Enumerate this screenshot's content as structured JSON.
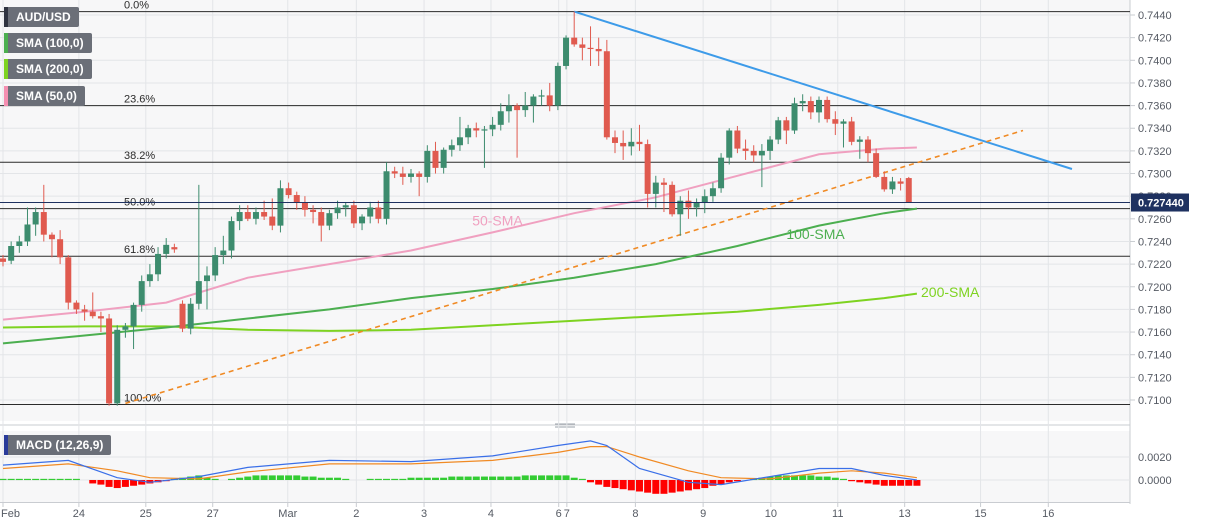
{
  "symbol": "AUD/USD",
  "indicators": [
    {
      "label": "SMA (100,0)",
      "color": "#4caf50"
    },
    {
      "label": "SMA (200,0)",
      "color": "#7ed321"
    },
    {
      "label": "SMA (50,0)",
      "color": "#f48fb1"
    }
  ],
  "macd_label": "MACD (12,26,9)",
  "current_price": "0.727440",
  "colors": {
    "up": "#3d8c6e",
    "down": "#e05a4f",
    "sma50": "#f0a0c0",
    "sma100": "#4caf50",
    "sma200": "#7ed321",
    "resistance": "#3d9be9",
    "support": "#f08a24",
    "macd": "#3a6fe8",
    "signal": "#f08a24",
    "hist_pos": "#33cc33",
    "hist_neg": "#ff0000"
  },
  "chart_data": [
    {
      "type": "candlestick",
      "title": "AUD/USD",
      "ylim": [
        0.7087,
        0.7456
      ],
      "y_ticks": [
        "0.7440",
        "0.7420",
        "0.7400",
        "0.7380",
        "0.7360",
        "0.7340",
        "0.7320",
        "0.7300",
        "0.7280",
        "0.7260",
        "0.7240",
        "0.7220",
        "0.7200",
        "0.7180",
        "0.7160",
        "0.7140",
        "0.7120",
        "0.7100"
      ],
      "x_ticks": [
        {
          "label": "Feb",
          "i": 0
        },
        {
          "label": "24",
          "i": 9.3
        },
        {
          "label": "25",
          "i": 17.5
        },
        {
          "label": "27",
          "i": 25.7
        },
        {
          "label": "Mar",
          "i": 34.9
        },
        {
          "label": "2",
          "i": 43.3
        },
        {
          "label": "3",
          "i": 51.6
        },
        {
          "label": "4",
          "i": 59.8
        },
        {
          "label": "6",
          "i": 68.1
        },
        {
          "label": "7",
          "i": 69.1
        },
        {
          "label": "8",
          "i": 77.5
        },
        {
          "label": "9",
          "i": 85.8
        },
        {
          "label": "10",
          "i": 94.1
        },
        {
          "label": "11",
          "i": 102.3
        },
        {
          "label": "13",
          "i": 110.5
        },
        {
          "label": "15",
          "i": 119.8
        },
        {
          "label": "16",
          "i": 128.1
        }
      ],
      "candles": [
        [
          0.7225,
          0.7228,
          0.7218,
          0.7222
        ],
        [
          0.7223,
          0.724,
          0.722,
          0.7236
        ],
        [
          0.7236,
          0.7245,
          0.723,
          0.724
        ],
        [
          0.724,
          0.727,
          0.7236,
          0.7255
        ],
        [
          0.7255,
          0.727,
          0.7245,
          0.7266
        ],
        [
          0.7266,
          0.729,
          0.724,
          0.7246
        ],
        [
          0.7246,
          0.7248,
          0.7226,
          0.7242
        ],
        [
          0.7242,
          0.725,
          0.722,
          0.7226
        ],
        [
          0.7226,
          0.7228,
          0.718,
          0.7186
        ],
        [
          0.7186,
          0.7188,
          0.7176,
          0.718
        ],
        [
          0.718,
          0.7184,
          0.717,
          0.7178
        ],
        [
          0.7178,
          0.7195,
          0.7172,
          0.7174
        ],
        [
          0.7174,
          0.7178,
          0.716,
          0.7172
        ],
        [
          0.7172,
          0.7176,
          0.7095,
          0.7097
        ],
        [
          0.7097,
          0.7166,
          0.7095,
          0.7162
        ],
        [
          0.7162,
          0.7168,
          0.7155,
          0.7165
        ],
        [
          0.7165,
          0.7186,
          0.7145,
          0.7184
        ],
        [
          0.7184,
          0.721,
          0.7178,
          0.7205
        ],
        [
          0.7205,
          0.722,
          0.72,
          0.7211
        ],
        [
          0.7211,
          0.7235,
          0.7205,
          0.7229
        ],
        [
          0.7229,
          0.7243,
          0.7225,
          0.7237
        ],
        [
          0.7235,
          0.7238,
          0.723,
          0.7233
        ],
        [
          0.7185,
          0.7188,
          0.716,
          0.7163
        ],
        [
          0.7163,
          0.719,
          0.7158,
          0.7185
        ],
        [
          0.7185,
          0.729,
          0.718,
          0.7205
        ],
        [
          0.7205,
          0.7218,
          0.718,
          0.721
        ],
        [
          0.721,
          0.7235,
          0.7205,
          0.7228
        ],
        [
          0.7228,
          0.7245,
          0.722,
          0.7232
        ],
        [
          0.7232,
          0.7262,
          0.7225,
          0.7258
        ],
        [
          0.7258,
          0.7272,
          0.725,
          0.7266
        ],
        [
          0.7266,
          0.7272,
          0.7258,
          0.726
        ],
        [
          0.726,
          0.727,
          0.7255,
          0.7266
        ],
        [
          0.7266,
          0.7276,
          0.7259,
          0.7262
        ],
        [
          0.7262,
          0.7278,
          0.725,
          0.7254
        ],
        [
          0.7254,
          0.7294,
          0.7248,
          0.7287
        ],
        [
          0.7287,
          0.7292,
          0.7278,
          0.7281
        ],
        [
          0.7281,
          0.7284,
          0.7268,
          0.7274
        ],
        [
          0.7274,
          0.728,
          0.7262,
          0.7268
        ],
        [
          0.7268,
          0.7272,
          0.7256,
          0.7266
        ],
        [
          0.7266,
          0.727,
          0.724,
          0.7254
        ],
        [
          0.7254,
          0.7268,
          0.725,
          0.7265
        ],
        [
          0.7265,
          0.7276,
          0.726,
          0.727
        ],
        [
          0.727,
          0.7274,
          0.7262,
          0.7272
        ],
        [
          0.7272,
          0.7276,
          0.7252,
          0.7256
        ],
        [
          0.7256,
          0.7264,
          0.725,
          0.7262
        ],
        [
          0.7262,
          0.7275,
          0.7256,
          0.727
        ],
        [
          0.727,
          0.7276,
          0.7256,
          0.726
        ],
        [
          0.726,
          0.731,
          0.7255,
          0.7302
        ],
        [
          0.7302,
          0.7306,
          0.7296,
          0.73
        ],
        [
          0.73,
          0.7306,
          0.729,
          0.7297
        ],
        [
          0.7297,
          0.7304,
          0.7292,
          0.73
        ],
        [
          0.73,
          0.7302,
          0.728,
          0.7297
        ],
        [
          0.7297,
          0.7325,
          0.7292,
          0.732
        ],
        [
          0.732,
          0.7328,
          0.73,
          0.7305
        ],
        [
          0.7305,
          0.7323,
          0.73,
          0.7321
        ],
        [
          0.7321,
          0.733,
          0.7315,
          0.7325
        ],
        [
          0.7325,
          0.735,
          0.732,
          0.7332
        ],
        [
          0.7332,
          0.7343,
          0.7326,
          0.734
        ],
        [
          0.734,
          0.7345,
          0.7332,
          0.7338
        ],
        [
          0.7338,
          0.7342,
          0.7305,
          0.7339
        ],
        [
          0.7339,
          0.735,
          0.7333,
          0.7343
        ],
        [
          0.7343,
          0.7362,
          0.7338,
          0.7355
        ],
        [
          0.7355,
          0.737,
          0.7345,
          0.736
        ],
        [
          0.736,
          0.7362,
          0.7314,
          0.7356
        ],
        [
          0.7356,
          0.7372,
          0.735,
          0.736
        ],
        [
          0.736,
          0.737,
          0.7345,
          0.7368
        ],
        [
          0.7368,
          0.7374,
          0.736,
          0.7369
        ],
        [
          0.7369,
          0.738,
          0.7355,
          0.736
        ],
        [
          0.736,
          0.7398,
          0.7356,
          0.7395
        ],
        [
          0.7395,
          0.7422,
          0.7392,
          0.742
        ],
        [
          0.742,
          0.7443,
          0.7412,
          0.7414
        ],
        [
          0.7414,
          0.742,
          0.74,
          0.7411
        ],
        [
          0.7411,
          0.743,
          0.7395,
          0.741
        ],
        [
          0.741,
          0.742,
          0.7395,
          0.7408
        ],
        [
          0.7408,
          0.7418,
          0.733,
          0.7332
        ],
        [
          0.7332,
          0.7338,
          0.7318,
          0.7327
        ],
        [
          0.7327,
          0.7338,
          0.7312,
          0.7324
        ],
        [
          0.7324,
          0.734,
          0.7316,
          0.7328
        ],
        [
          0.7328,
          0.7343,
          0.732,
          0.7326
        ],
        [
          0.7326,
          0.733,
          0.727,
          0.7282
        ],
        [
          0.7282,
          0.7298,
          0.727,
          0.7292
        ],
        [
          0.7292,
          0.7296,
          0.7266,
          0.729
        ],
        [
          0.729,
          0.7293,
          0.7262,
          0.7264
        ],
        [
          0.7264,
          0.728,
          0.7245,
          0.7276
        ],
        [
          0.7276,
          0.7285,
          0.726,
          0.727
        ],
        [
          0.727,
          0.7278,
          0.7262,
          0.7274
        ],
        [
          0.7274,
          0.7286,
          0.7265,
          0.728
        ],
        [
          0.728,
          0.7292,
          0.7275,
          0.7287
        ],
        [
          0.7287,
          0.7318,
          0.7283,
          0.7314
        ],
        [
          0.7314,
          0.734,
          0.7308,
          0.7338
        ],
        [
          0.7338,
          0.7342,
          0.7318,
          0.7322
        ],
        [
          0.7322,
          0.733,
          0.7312,
          0.732
        ],
        [
          0.732,
          0.7325,
          0.731,
          0.7316
        ],
        [
          0.7316,
          0.7326,
          0.7288,
          0.732
        ],
        [
          0.732,
          0.7333,
          0.7312,
          0.733
        ],
        [
          0.733,
          0.735,
          0.7326,
          0.7347
        ],
        [
          0.7347,
          0.735,
          0.7326,
          0.7338
        ],
        [
          0.7338,
          0.7367,
          0.7335,
          0.7362
        ],
        [
          0.7362,
          0.737,
          0.7355,
          0.7364
        ],
        [
          0.7364,
          0.7368,
          0.7348,
          0.7354
        ],
        [
          0.7354,
          0.7368,
          0.7345,
          0.7365
        ],
        [
          0.7365,
          0.7368,
          0.7345,
          0.7348
        ],
        [
          0.7348,
          0.7355,
          0.7334,
          0.7344
        ],
        [
          0.7344,
          0.7348,
          0.7323,
          0.7346
        ],
        [
          0.7346,
          0.735,
          0.7325,
          0.7328
        ],
        [
          0.7328,
          0.7333,
          0.7313,
          0.733
        ],
        [
          0.733,
          0.7333,
          0.731,
          0.7318
        ],
        [
          0.7318,
          0.7322,
          0.7296,
          0.7297
        ],
        [
          0.7297,
          0.7302,
          0.7284,
          0.7286
        ],
        [
          0.7286,
          0.7297,
          0.7282,
          0.7293
        ],
        [
          0.7293,
          0.7296,
          0.7285,
          0.7291
        ],
        [
          0.7296,
          0.7297,
          0.7274,
          0.7274
        ]
      ],
      "sma50": [
        [
          0,
          0.7171
        ],
        [
          10,
          0.7178
        ],
        [
          20,
          0.7186
        ],
        [
          30,
          0.7208
        ],
        [
          40,
          0.722
        ],
        [
          50,
          0.7232
        ],
        [
          60,
          0.7248
        ],
        [
          70,
          0.7265
        ],
        [
          80,
          0.7279
        ],
        [
          90,
          0.7298
        ],
        [
          100,
          0.7317
        ],
        [
          108,
          0.7322
        ],
        [
          112,
          0.7323
        ]
      ],
      "sma100": [
        [
          0,
          0.715
        ],
        [
          10,
          0.7157
        ],
        [
          20,
          0.7164
        ],
        [
          30,
          0.7172
        ],
        [
          40,
          0.718
        ],
        [
          50,
          0.719
        ],
        [
          60,
          0.7198
        ],
        [
          70,
          0.7208
        ],
        [
          80,
          0.722
        ],
        [
          90,
          0.7236
        ],
        [
          100,
          0.7254
        ],
        [
          108,
          0.7265
        ],
        [
          112,
          0.7269
        ]
      ],
      "sma200": [
        [
          0,
          0.7164
        ],
        [
          10,
          0.7165
        ],
        [
          20,
          0.7165
        ],
        [
          30,
          0.7162
        ],
        [
          40,
          0.7161
        ],
        [
          50,
          0.7162
        ],
        [
          60,
          0.7166
        ],
        [
          70,
          0.717
        ],
        [
          80,
          0.7174
        ],
        [
          90,
          0.7178
        ],
        [
          100,
          0.7184
        ],
        [
          108,
          0.719
        ],
        [
          112,
          0.7194
        ]
      ],
      "resistance_line": [
        [
          70,
          0.7443
        ],
        [
          131,
          0.7304
        ]
      ],
      "support_line": [
        [
          15,
          0.7097
        ],
        [
          125,
          0.7338
        ]
      ],
      "fibonacci": [
        {
          "label": "0.0%",
          "y": 0.7443
        },
        {
          "label": "23.6%",
          "y": 0.736
        },
        {
          "label": "38.2%",
          "y": 0.731
        },
        {
          "label": "50.0%",
          "y": 0.7269
        },
        {
          "label": "61.8%",
          "y": 0.7227
        },
        {
          "label": "100.0%",
          "y": 0.7096
        }
      ],
      "annotations": [
        {
          "text": "50-SMA",
          "i": 57.5,
          "y": 0.7254
        },
        {
          "text": "100-SMA",
          "i": 96,
          "y": 0.7242
        },
        {
          "text": "200-SMA",
          "i": 112.5,
          "y": 0.7191
        }
      ]
    },
    {
      "type": "bar",
      "title": "MACD (12,26,9)",
      "ylim": [
        -0.0016,
        0.004
      ],
      "y_ticks": [
        "0.0020",
        "0.0000"
      ],
      "histogram": [
        0.0001,
        0.0001,
        0.0001,
        0.0001,
        0.0001,
        0.0001,
        0.0001,
        0.0001,
        0.0001,
        0.0001,
        0.0,
        -0.0003,
        -0.0004,
        -0.0006,
        -0.0007,
        -0.0006,
        -0.0005,
        -0.0004,
        -0.0003,
        -0.0002,
        -0.0001,
        0.0001,
        0.0002,
        0.0003,
        0.0004,
        0.0002,
        0.0001,
        0.0,
        0.0001,
        0.0002,
        0.0003,
        0.0004,
        0.0004,
        0.0004,
        0.0004,
        0.0004,
        0.0004,
        0.0003,
        0.0003,
        0.0002,
        0.0002,
        0.0002,
        0.0001,
        0.0,
        0.0,
        0.0001,
        0.0001,
        0.0001,
        0.0001,
        0.0001,
        0.0002,
        0.0002,
        0.0002,
        0.0002,
        0.0002,
        0.0003,
        0.0003,
        0.0003,
        0.0003,
        0.0003,
        0.0003,
        0.0003,
        0.0003,
        0.0003,
        0.0004,
        0.0004,
        0.0004,
        0.0004,
        0.0004,
        0.0004,
        0.0002,
        0.0001,
        -0.0002,
        -0.0004,
        -0.0006,
        -0.0007,
        -0.0008,
        -0.0009,
        -0.001,
        -0.0011,
        -0.0012,
        -0.0012,
        -0.0011,
        -0.001,
        -0.0009,
        -0.0008,
        -0.0007,
        -0.0005,
        -0.0004,
        -0.0002,
        -0.0001,
        0.0,
        0.0001,
        0.0002,
        0.0003,
        0.0004,
        0.0004,
        0.0004,
        0.0004,
        0.0004,
        0.0003,
        0.0003,
        0.0002,
        0.0001,
        -0.0001,
        -0.0002,
        -0.0003,
        -0.0004,
        -0.0005,
        -0.0005,
        -0.0005,
        -0.0005,
        -0.0005
      ],
      "macd_line": [
        [
          0,
          0.0013
        ],
        [
          8,
          0.0017
        ],
        [
          14,
          0.0002
        ],
        [
          18,
          -0.0002
        ],
        [
          24,
          0.0003
        ],
        [
          30,
          0.0011
        ],
        [
          40,
          0.0017
        ],
        [
          50,
          0.0016
        ],
        [
          60,
          0.0021
        ],
        [
          68,
          0.003
        ],
        [
          72,
          0.0034
        ],
        [
          74,
          0.003
        ],
        [
          78,
          0.001
        ],
        [
          84,
          -0.0002
        ],
        [
          88,
          -0.0004
        ],
        [
          94,
          0.0003
        ],
        [
          100,
          0.001
        ],
        [
          104,
          0.001
        ],
        [
          108,
          0.0004
        ],
        [
          112,
          0.0
        ]
      ],
      "signal_line": [
        [
          0,
          0.001
        ],
        [
          8,
          0.0014
        ],
        [
          14,
          0.0008
        ],
        [
          18,
          0.0002
        ],
        [
          24,
          0.0001
        ],
        [
          30,
          0.0007
        ],
        [
          40,
          0.0014
        ],
        [
          50,
          0.0014
        ],
        [
          60,
          0.0017
        ],
        [
          68,
          0.0024
        ],
        [
          72,
          0.0029
        ],
        [
          74,
          0.0029
        ],
        [
          78,
          0.002
        ],
        [
          84,
          0.0008
        ],
        [
          88,
          0.0002
        ],
        [
          94,
          0.0001
        ],
        [
          100,
          0.0006
        ],
        [
          104,
          0.0008
        ],
        [
          108,
          0.0006
        ],
        [
          112,
          0.0002
        ]
      ]
    }
  ]
}
